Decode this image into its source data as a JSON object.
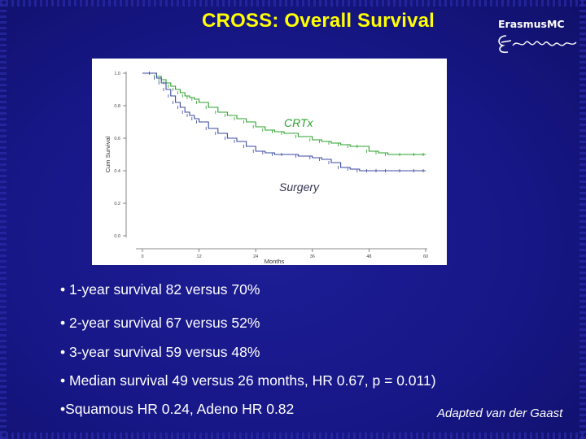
{
  "slide": {
    "title": "CROSS: Overall Survival",
    "logo_text": "ErasmusMC",
    "attribution": "Adapted van der Gaast",
    "bullets": [
      "• 1-year survival 82 versus 70%",
      "• 2-year survival 67 versus 52%",
      "• 3-year survival 59 versus 48%",
      "• Median survival 49 versus 26 months, HR 0.67, p = 0.011)",
      "•Squamous HR 0.24, Adeno HR 0.82"
    ]
  },
  "colors": {
    "background": "#14147a",
    "title": "#ffff00",
    "crtx": "#2ca02c",
    "surgery": "#3b4aa0",
    "bullet_text": "#ffffff"
  },
  "chart_data": {
    "type": "line",
    "title": "",
    "xlabel": "Months",
    "ylabel": "Cum Survival",
    "xlim": [
      0,
      60
    ],
    "ylim": [
      0,
      1.0
    ],
    "xticks": [
      0,
      12,
      24,
      36,
      48,
      60
    ],
    "yticks": [
      0.0,
      0.2,
      0.4,
      0.6,
      0.8,
      1.0
    ],
    "xtick_labels": [
      "0",
      "12",
      "24",
      "36",
      "48",
      "60"
    ],
    "ytick_labels": [
      "0.0",
      "0.2",
      "0.4",
      "0.6",
      "0.8",
      "1.0"
    ],
    "annotations": [
      {
        "text": "CRTx",
        "series": "CRTx"
      },
      {
        "text": "Surgery",
        "series": "Surgery"
      }
    ],
    "series": [
      {
        "name": "CRTx",
        "color": "#2ca02c",
        "x": [
          0,
          2,
          3,
          4,
          5,
          6,
          7,
          8,
          9,
          10,
          11,
          12,
          14,
          16,
          18,
          20,
          22,
          24,
          26,
          28,
          30,
          33,
          36,
          38,
          40,
          42,
          44,
          46,
          48,
          50,
          52,
          55,
          58,
          60
        ],
        "y": [
          1.0,
          1.0,
          0.98,
          0.96,
          0.94,
          0.92,
          0.9,
          0.88,
          0.86,
          0.85,
          0.84,
          0.82,
          0.79,
          0.76,
          0.74,
          0.72,
          0.7,
          0.67,
          0.65,
          0.64,
          0.63,
          0.61,
          0.59,
          0.58,
          0.57,
          0.56,
          0.55,
          0.55,
          0.52,
          0.51,
          0.5,
          0.5,
          0.5,
          0.5
        ]
      },
      {
        "name": "Surgery",
        "color": "#3b4aa0",
        "x": [
          0,
          2,
          3,
          4,
          5,
          6,
          7,
          8,
          9,
          10,
          11,
          12,
          14,
          16,
          18,
          20,
          22,
          24,
          26,
          28,
          30,
          33,
          36,
          38,
          40,
          42,
          44,
          46,
          48,
          50,
          52,
          55,
          58,
          60
        ],
        "y": [
          1.0,
          1.0,
          0.97,
          0.94,
          0.9,
          0.86,
          0.82,
          0.79,
          0.76,
          0.74,
          0.72,
          0.7,
          0.66,
          0.63,
          0.6,
          0.58,
          0.55,
          0.52,
          0.51,
          0.5,
          0.5,
          0.49,
          0.48,
          0.47,
          0.45,
          0.42,
          0.41,
          0.4,
          0.4,
          0.4,
          0.4,
          0.4,
          0.4,
          0.4
        ]
      }
    ]
  }
}
